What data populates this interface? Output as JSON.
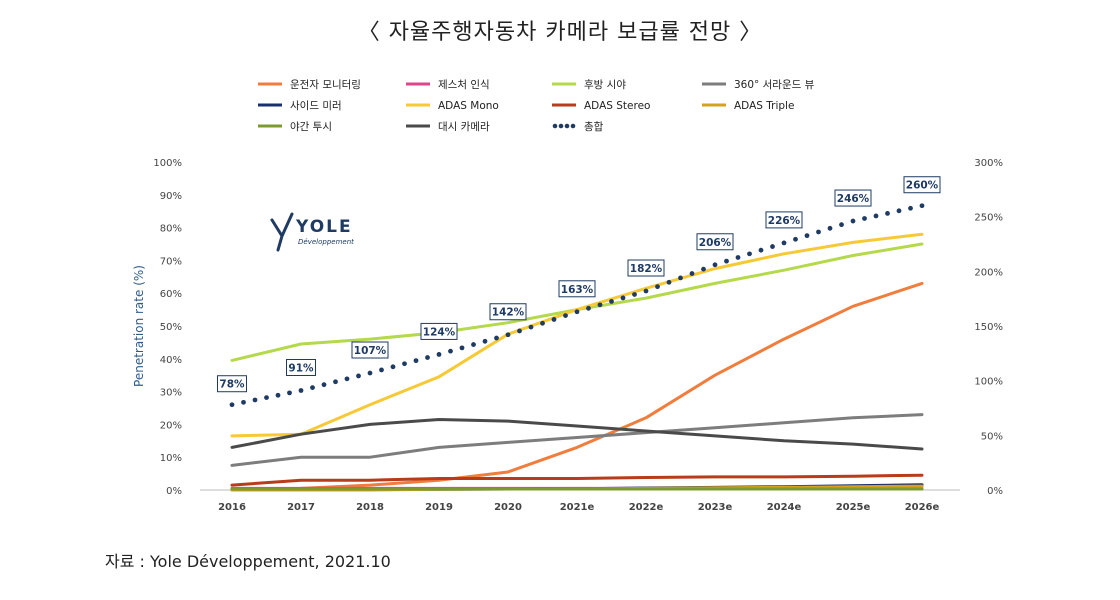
{
  "title": "〈 자율주행자동차 카메라 보급률 전망 〉",
  "source": "자료 : Yole Développement, 2021.10",
  "logo": {
    "name": "YOLE",
    "sub": "Développement"
  },
  "chart_data": {
    "type": "line",
    "x": [
      "2016",
      "2017",
      "2018",
      "2019",
      "2020",
      "2021e",
      "2022e",
      "2023e",
      "2024e",
      "2025e",
      "2026e"
    ],
    "ylabel": "Penetration rate (%)",
    "ylim": [
      0,
      100
    ],
    "y2lim": [
      0,
      300
    ],
    "yticks": [
      "0%",
      "10%",
      "20%",
      "30%",
      "40%",
      "50%",
      "60%",
      "70%",
      "80%",
      "90%",
      "100%"
    ],
    "y2ticks": [
      "0%",
      "50%",
      "100%",
      "150%",
      "200%",
      "250%",
      "300%"
    ],
    "grid": false,
    "legend_position": "top",
    "series": [
      {
        "name": "운전자 모니터링",
        "color": "#f07d3c",
        "axis": "left",
        "values": [
          0,
          0.5,
          1.5,
          3,
          5.5,
          13,
          22,
          35,
          46,
          56,
          63
        ]
      },
      {
        "name": "제스처 인식",
        "color": "#e0458c",
        "axis": "left",
        "values": [
          0.5,
          0.5,
          0.5,
          0.5,
          0.5,
          0.5,
          0.5,
          0.5,
          0.5,
          0.5,
          0.5
        ]
      },
      {
        "name": "후방 시야",
        "color": "#b4d94a",
        "axis": "left",
        "values": [
          39.5,
          44.5,
          46,
          48,
          51,
          55,
          58.5,
          63,
          67,
          71.5,
          75
        ]
      },
      {
        "name": "360° 서라운드 뷰",
        "color": "#7d7d7d",
        "axis": "left",
        "values": [
          7.5,
          10,
          10,
          13,
          14.5,
          16,
          17.5,
          19,
          20.5,
          22,
          23
        ]
      },
      {
        "name": "사이드 미러",
        "color": "#1a2f6e",
        "axis": "left",
        "values": [
          0.2,
          0.2,
          0.2,
          0.2,
          0.3,
          0.4,
          0.6,
          0.8,
          1.0,
          1.3,
          1.6
        ]
      },
      {
        "name": "ADAS Mono",
        "color": "#f7c936",
        "axis": "left",
        "values": [
          16.5,
          17,
          26,
          34.5,
          47.5,
          55,
          61.5,
          67.5,
          72,
          75.5,
          78
        ]
      },
      {
        "name": "ADAS Stereo",
        "color": "#b83c1a",
        "axis": "left",
        "values": [
          1.5,
          3,
          3,
          3.5,
          3.5,
          3.5,
          3.8,
          4,
          4,
          4.2,
          4.5
        ]
      },
      {
        "name": "ADAS Triple",
        "color": "#d4a220",
        "axis": "left",
        "values": [
          0,
          0,
          0,
          0.2,
          0.3,
          0.4,
          0.5,
          0.7,
          0.8,
          1.0,
          1.2
        ]
      },
      {
        "name": "야간 투시",
        "color": "#7c9a2e",
        "axis": "left",
        "values": [
          0.3,
          0.3,
          0.3,
          0.3,
          0.3,
          0.3,
          0.3,
          0.3,
          0.3,
          0.3,
          0.3
        ]
      },
      {
        "name": "대시 카메라",
        "color": "#4a4a4a",
        "axis": "left",
        "values": [
          13,
          17,
          20,
          21.5,
          21,
          19.5,
          18,
          16.5,
          15,
          14,
          12.5
        ]
      },
      {
        "name": "총합",
        "color": "#1f3b63",
        "axis": "right",
        "dotted": true,
        "values": [
          78,
          91,
          107,
          124,
          142,
          163,
          182,
          206,
          226,
          246,
          260
        ]
      }
    ],
    "annotations": [
      "78%",
      "91%",
      "107%",
      "124%",
      "142%",
      "163%",
      "182%",
      "206%",
      "226%",
      "246%",
      "260%"
    ]
  }
}
